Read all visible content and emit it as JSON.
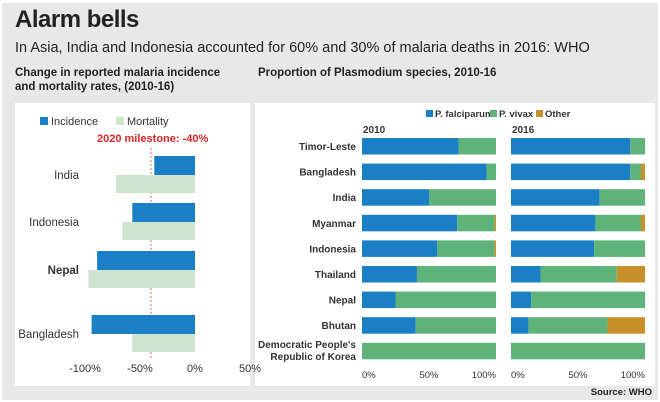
{
  "header": {
    "title": "Alarm bells",
    "subtitle": "In Asia, India and Indonesia accounted for 60% and 30% of malaria deaths in 2016: WHO"
  },
  "source": "Source: WHO",
  "colors": {
    "incidence": "#1a7fc4",
    "mortality": "#cfe4cf",
    "milestone": "#d9252b",
    "falciparum": "#1a7fc4",
    "vivax": "#5fb37a",
    "other": "#c8902a"
  },
  "chart_data": [
    {
      "type": "bar",
      "orientation": "horizontal",
      "title": "Change in reported malaria incidence and mortality rates, (2010-16)",
      "title_lines": [
        "Change in reported malaria incidence",
        "and mortality rates, (2010-16)"
      ],
      "categories": [
        "India",
        "Indonesia",
        "Nepal",
        "Bangladesh"
      ],
      "series": [
        {
          "name": "Incidence",
          "values": [
            -37,
            -57,
            -89,
            -94
          ]
        },
        {
          "name": "Mortality",
          "values": [
            -72,
            -66,
            -97,
            -57
          ]
        }
      ],
      "xlim": [
        -100,
        50
      ],
      "xticks": [
        -100,
        -50,
        0,
        50
      ],
      "xtick_labels": [
        "-100%",
        "-50%",
        "0%",
        "50%"
      ],
      "annotation": {
        "label": "2020 milestone: -40%",
        "value": -40
      },
      "legend": "top",
      "grid": false
    },
    {
      "type": "bar",
      "orientation": "horizontal",
      "stacked": true,
      "title": "Proportion of Plasmodium species, 2010-16",
      "legend": "top",
      "legend_entries": [
        "P. falciparum",
        "P. vivax",
        "Other"
      ],
      "categories": [
        "Timor-Leste",
        "Bangladesh",
        "India",
        "Myanmar",
        "Indonesia",
        "Thailand",
        "Nepal",
        "Bhutan",
        "Democratic People's Republic of Korea"
      ],
      "category_lines": [
        [
          "Timor-Leste"
        ],
        [
          "Bangladesh"
        ],
        [
          "India"
        ],
        [
          "Myanmar"
        ],
        [
          "Indonesia"
        ],
        [
          "Thailand"
        ],
        [
          "Nepal"
        ],
        [
          "Bhutan"
        ],
        [
          "Democratic People's",
          "Republic of Korea"
        ]
      ],
      "panels": [
        {
          "label": "2010",
          "series": [
            {
              "name": "P. falciparum",
              "values": [
                72,
                93,
                50,
                71,
                56,
                41,
                25,
                40,
                0
              ]
            },
            {
              "name": "P. vivax",
              "values": [
                28,
                7,
                50,
                28,
                43,
                59,
                75,
                60,
                100
              ]
            },
            {
              "name": "Other",
              "values": [
                0,
                0,
                0,
                1,
                1,
                0,
                0,
                0,
                0
              ]
            }
          ]
        },
        {
          "label": "2016",
          "series": [
            {
              "name": "P. falciparum",
              "values": [
                89,
                89,
                66,
                63,
                62,
                22,
                15,
                13,
                0
              ]
            },
            {
              "name": "P. vivax",
              "values": [
                11,
                8,
                34,
                34,
                38,
                57,
                85,
                59,
                100
              ]
            },
            {
              "name": "Other",
              "values": [
                0,
                3,
                0,
                3,
                0,
                21,
                0,
                28,
                0
              ]
            }
          ]
        }
      ],
      "xlim": [
        0,
        100
      ],
      "xticks": [
        0,
        50,
        100
      ],
      "xtick_labels": [
        "0%",
        "50%",
        "100%"
      ],
      "grid": false
    }
  ]
}
